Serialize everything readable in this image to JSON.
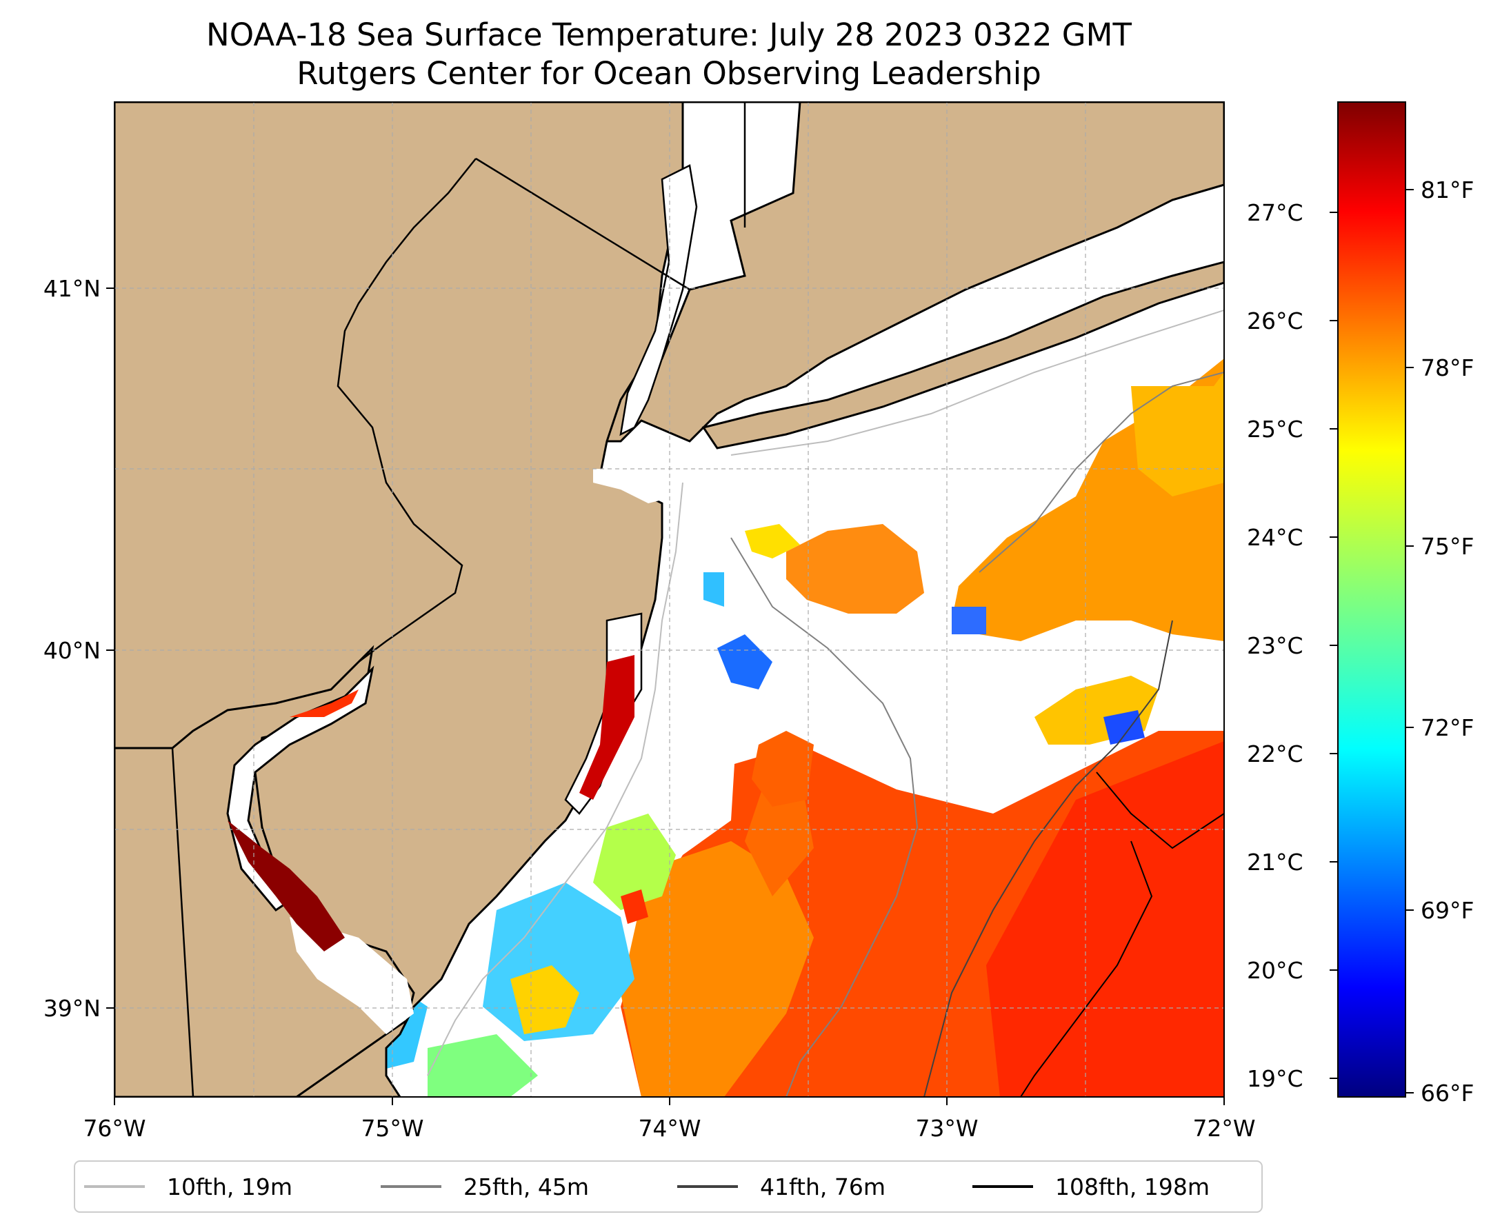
{
  "map": {
    "title": "NOAA-18 Sea Surface Temperature: July 28 2023 0322 GMT",
    "subtitle": "Rutgers Center for Ocean Observing Leadership",
    "longitude_labels": [
      "76°W",
      "75°W",
      "74°W",
      "73°W",
      "72°W"
    ],
    "latitude_labels": [
      "41°N",
      "40°N",
      "39°N"
    ],
    "land_color": "#d2b48c",
    "no_data_color": "#ffffff"
  },
  "colorbar": {
    "celsius_labels": [
      "27°C",
      "26°C",
      "25°C",
      "24°C",
      "23°C",
      "22°C",
      "21°C",
      "20°C",
      "19°C"
    ],
    "fahrenheit_labels": [
      "81°F",
      "78°F",
      "75°F",
      "72°F",
      "69°F",
      "66°F"
    ],
    "colormap": "jet",
    "colors": [
      "#00007f",
      "#0000ff",
      "#007fff",
      "#00ffff",
      "#7fff7f",
      "#ffff00",
      "#ff7f00",
      "#ff0000",
      "#7f0000"
    ]
  },
  "legend": {
    "items": [
      {
        "label": "10fth, 19m",
        "color": "#bdbdbd"
      },
      {
        "label": "25fth, 45m",
        "color": "#808080"
      },
      {
        "label": "41fth, 76m",
        "color": "#404040"
      },
      {
        "label": "108fth, 198m",
        "color": "#000000"
      }
    ]
  }
}
